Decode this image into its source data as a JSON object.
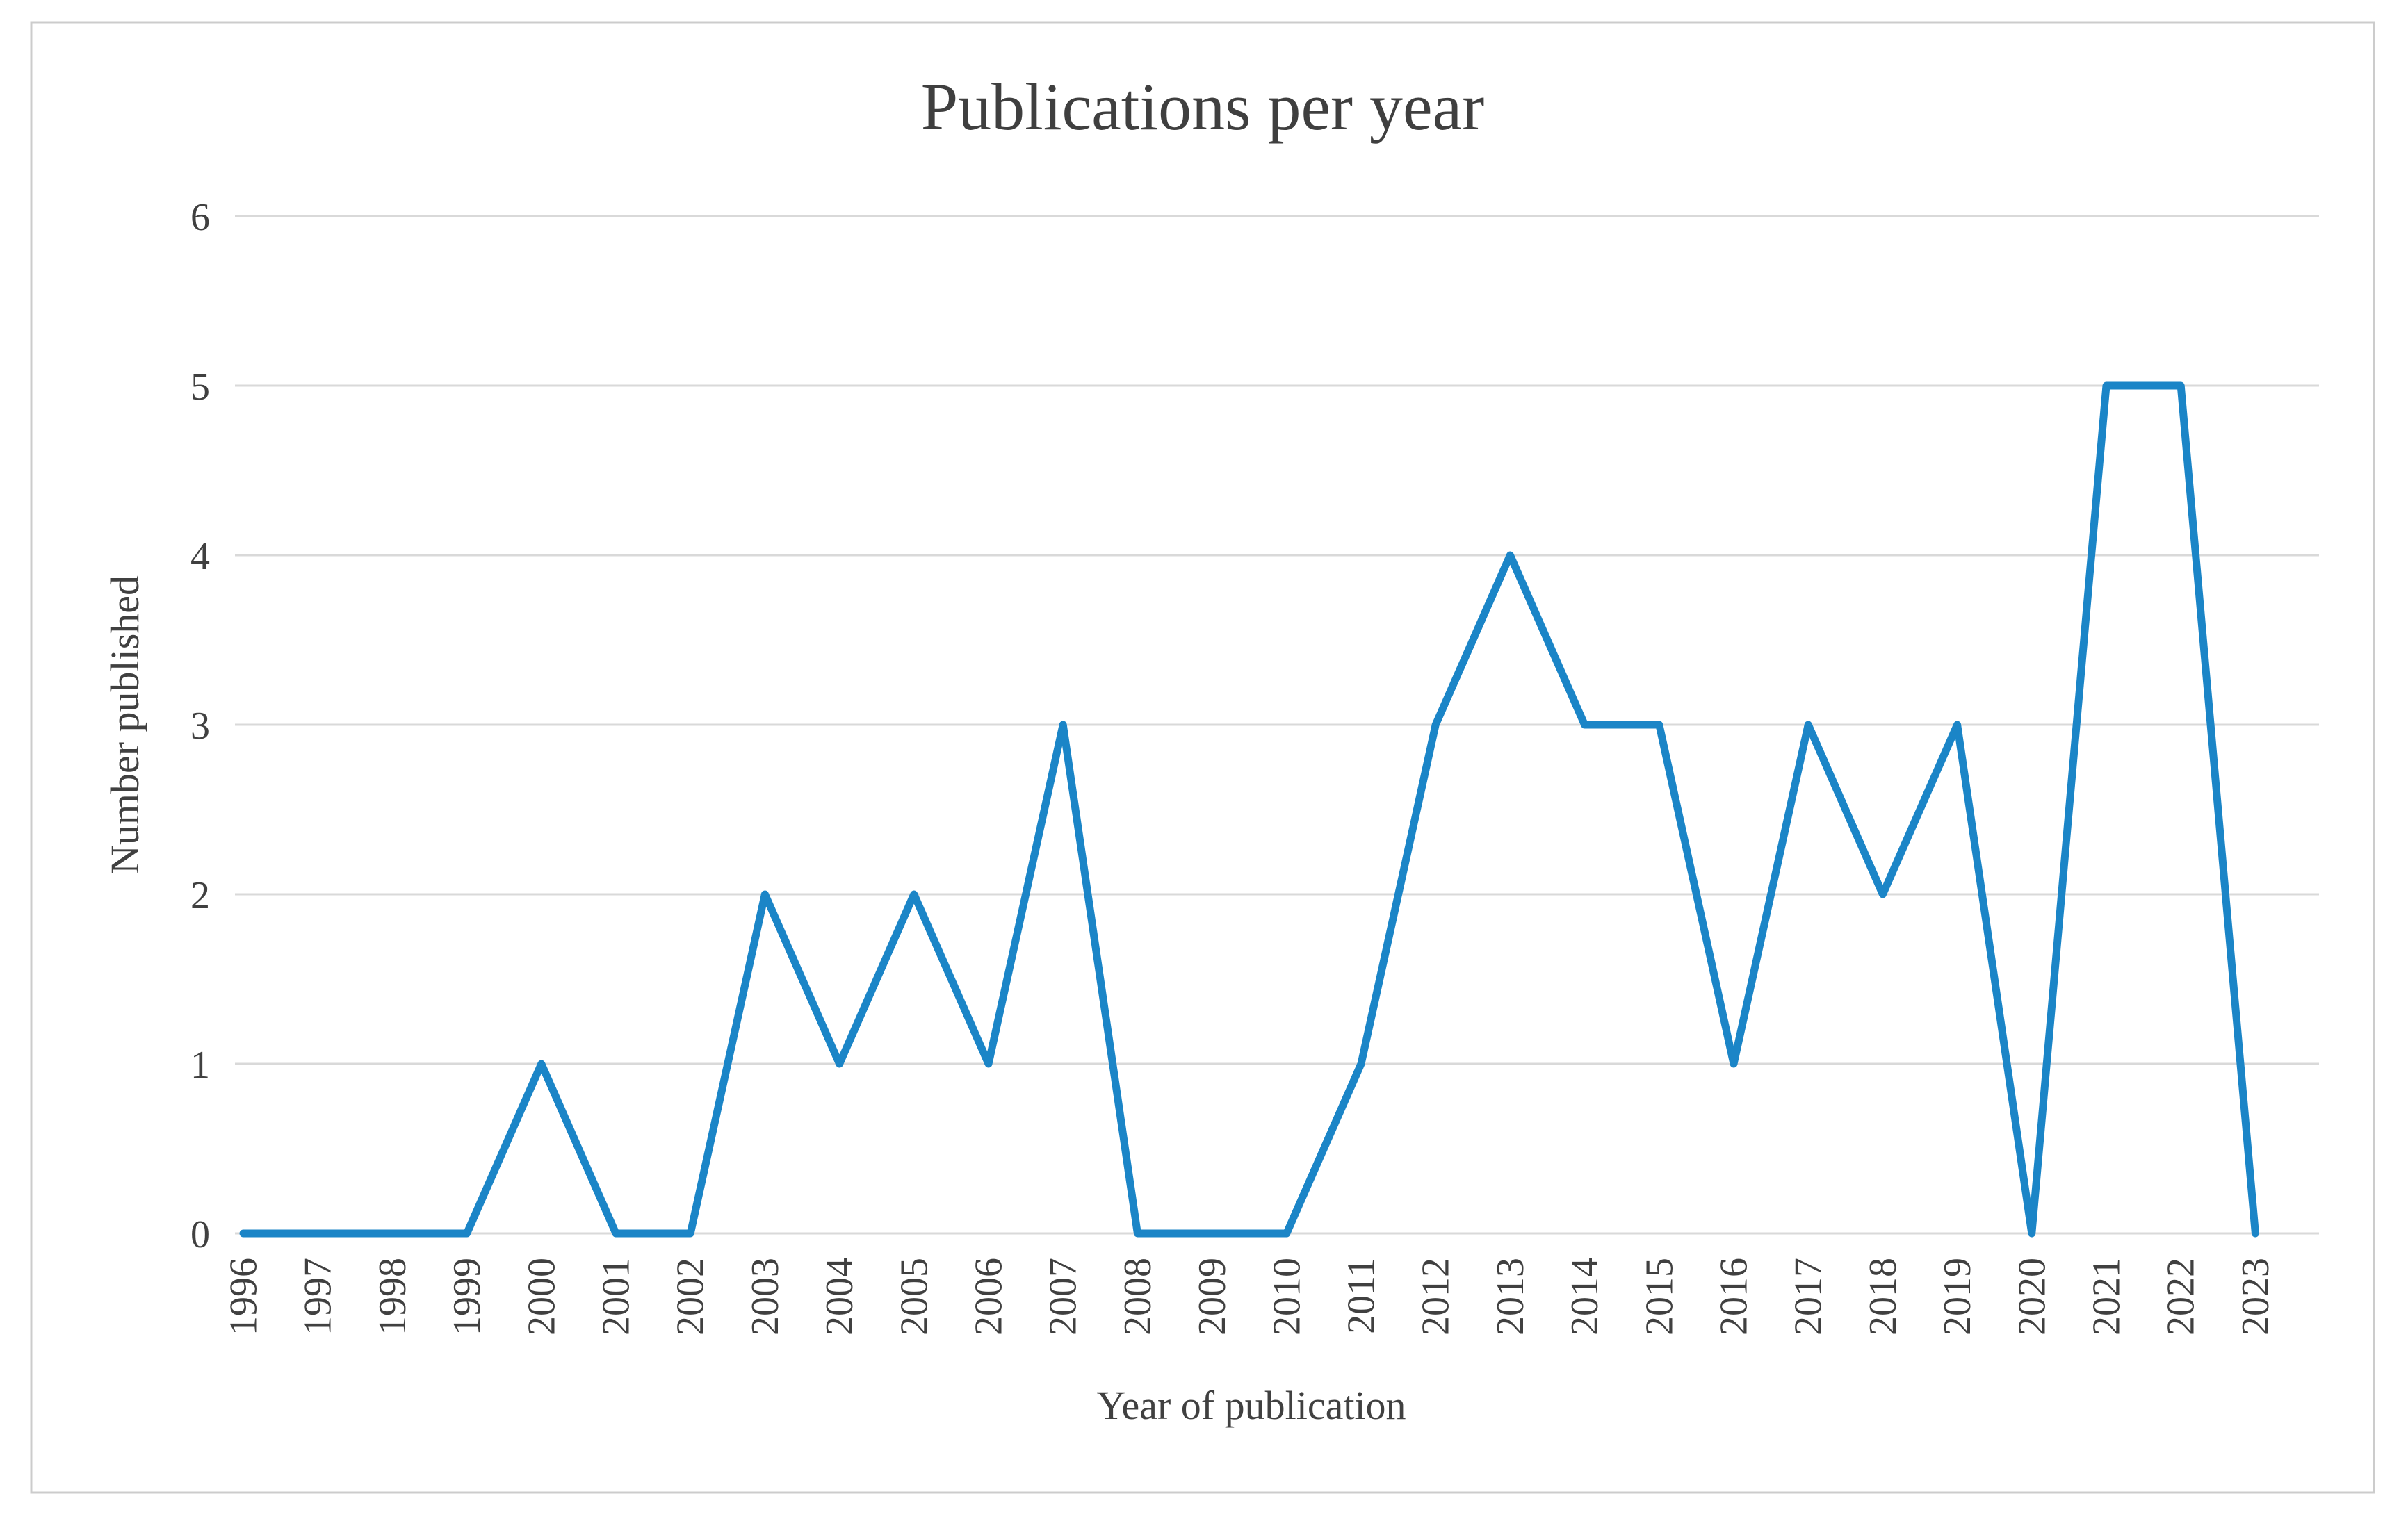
{
  "chart_data": {
    "type": "line",
    "title": "Publications per year",
    "xlabel": "Year of publication",
    "ylabel": "Number published",
    "categories": [
      "1996",
      "1997",
      "1998",
      "1999",
      "2000",
      "2001",
      "2002",
      "2003",
      "2004",
      "2005",
      "2006",
      "2007",
      "2008",
      "2009",
      "2010",
      "2011",
      "2012",
      "2013",
      "2014",
      "2015",
      "2016",
      "2017",
      "2018",
      "2019",
      "2020",
      "2021",
      "2022",
      "2023"
    ],
    "values": [
      0,
      0,
      0,
      0,
      1,
      0,
      0,
      2,
      1,
      2,
      1,
      3,
      0,
      0,
      0,
      1,
      3,
      4,
      3,
      3,
      1,
      3,
      2,
      3,
      0,
      5,
      5,
      0
    ],
    "ylim": [
      0,
      6
    ],
    "yticks": [
      0,
      1,
      2,
      3,
      4,
      5,
      6
    ],
    "grid": true,
    "legend_position": "none",
    "colors": {
      "line": "#1B85C7",
      "gridline": "#D9D9D9",
      "text": "#404040",
      "title": "#3F3F3F",
      "frame_border": "#CCCCCC",
      "background": "#FFFFFF"
    }
  }
}
